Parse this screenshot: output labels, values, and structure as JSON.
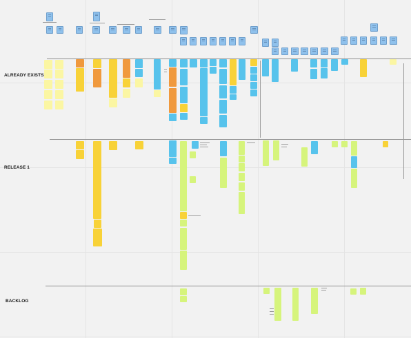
{
  "lanes": [
    {
      "label": "ALREADY EXISTS"
    },
    {
      "label": "RELEASE 1"
    },
    {
      "label": "BACKLOG"
    }
  ],
  "colors": {
    "story_blue": "#57c3ec",
    "story_yellow": "#f8d238",
    "story_orange": "#f0993d",
    "story_lime": "#d6f47c",
    "story_pale": "#fbf6a3",
    "epic_blue": "#8fc1ec",
    "board_background": "#f2f2f2",
    "separator": "#8e8e8e"
  }
}
